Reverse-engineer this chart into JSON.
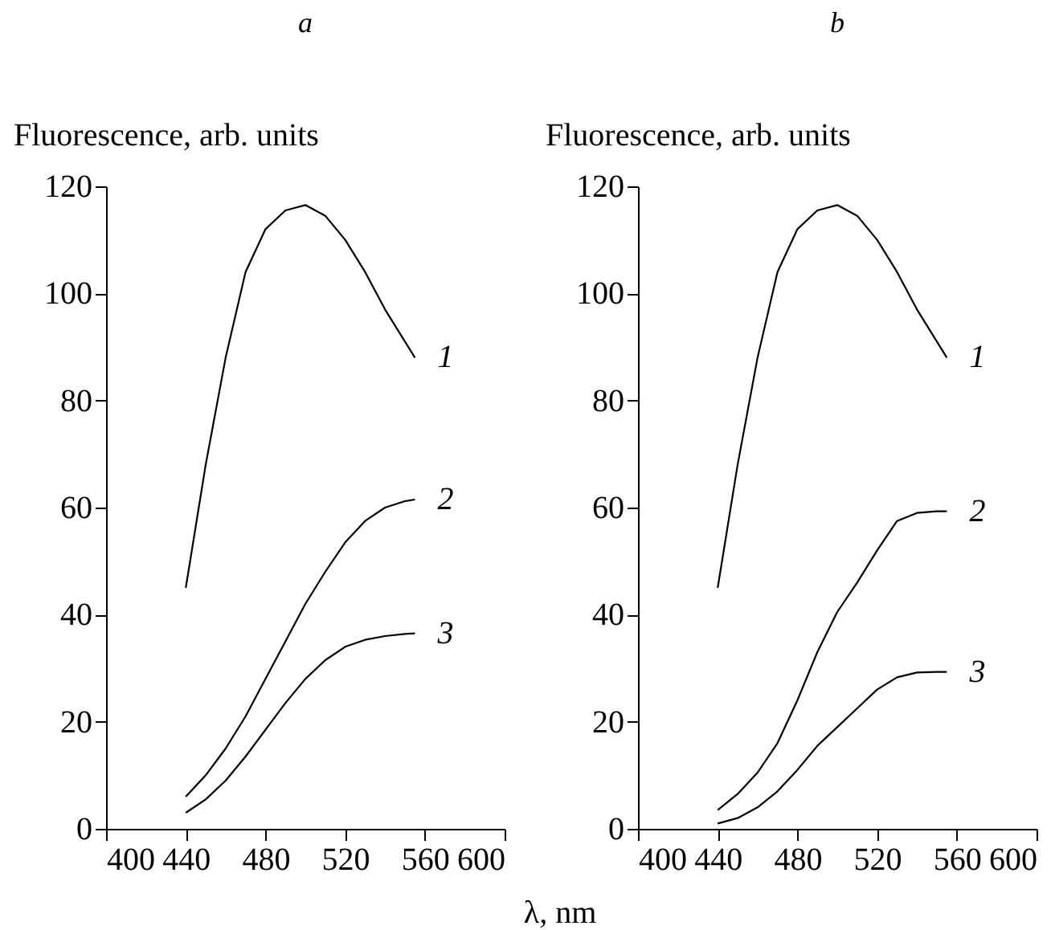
{
  "chart_data": [
    {
      "type": "line",
      "title": "a",
      "ylabel": "Fluorescence, arb. units",
      "xlabel": "λ, nm",
      "xlim": [
        400,
        600
      ],
      "xticks": [
        400,
        440,
        480,
        520,
        560,
        600
      ],
      "ylim": [
        0,
        120
      ],
      "yticks": [
        0,
        20,
        40,
        60,
        80,
        100,
        120
      ],
      "grid": false,
      "legend": false,
      "x": [
        440,
        450,
        460,
        470,
        480,
        490,
        500,
        510,
        520,
        530,
        540,
        550,
        555
      ],
      "series": [
        {
          "name": "1",
          "color": "#000000",
          "values": [
            45,
            68,
            88,
            104,
            112,
            115.5,
            116.5,
            114.5,
            110,
            104,
            97,
            91,
            88
          ]
        },
        {
          "name": "2",
          "color": "#000000",
          "values": [
            6,
            10,
            15,
            21,
            28,
            35,
            42,
            48,
            53.5,
            57.5,
            60,
            61.2,
            61.5
          ]
        },
        {
          "name": "3",
          "color": "#000000",
          "values": [
            3,
            5.5,
            9,
            13.5,
            18.5,
            23.5,
            28,
            31.5,
            34,
            35.3,
            36,
            36.4,
            36.5
          ]
        }
      ]
    },
    {
      "type": "line",
      "title": "b",
      "ylabel": "Fluorescence, arb. units",
      "xlim": [
        400,
        600
      ],
      "xticks": [
        400,
        440,
        480,
        520,
        560,
        600
      ],
      "ylim": [
        0,
        120
      ],
      "yticks": [
        0,
        20,
        40,
        60,
        80,
        100,
        120
      ],
      "grid": false,
      "legend": false,
      "x": [
        440,
        450,
        460,
        470,
        480,
        490,
        500,
        510,
        520,
        530,
        540,
        550,
        555
      ],
      "series": [
        {
          "name": "1",
          "color": "#000000",
          "values": [
            45,
            68,
            88,
            104,
            112,
            115.5,
            116.5,
            114.5,
            110,
            104,
            97,
            91,
            88
          ]
        },
        {
          "name": "2",
          "color": "#000000",
          "values": [
            3.5,
            6.5,
            10.5,
            16,
            24,
            33,
            40.5,
            46,
            52,
            57.5,
            59,
            59.3,
            59.3
          ]
        },
        {
          "name": "3",
          "color": "#000000",
          "values": [
            1,
            2,
            4,
            7,
            11,
            15.5,
            19,
            22.5,
            26,
            28.3,
            29.2,
            29.3,
            29.3
          ]
        }
      ]
    }
  ]
}
